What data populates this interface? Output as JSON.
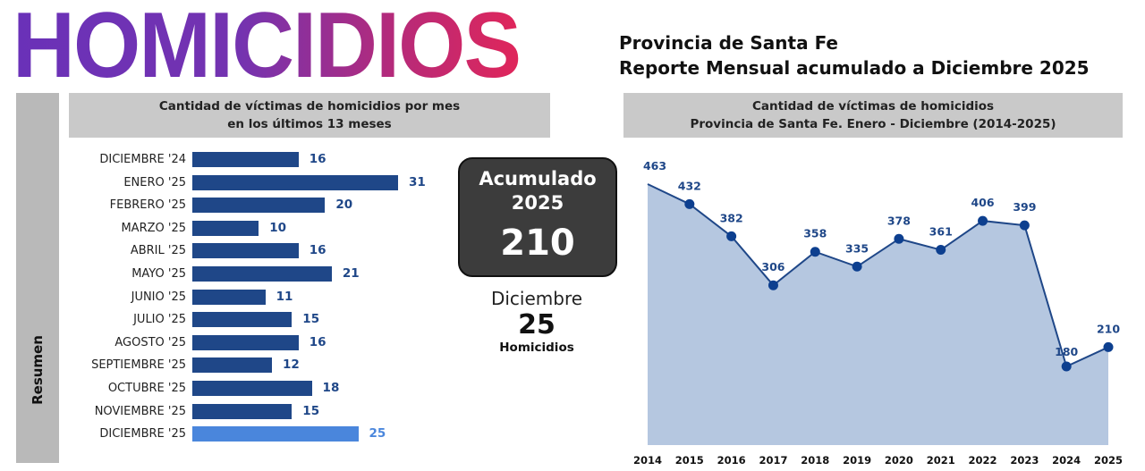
{
  "header": {
    "title": "HOMICIDIOS",
    "subtitle_1": "Provincia de Santa Fe",
    "subtitle_2": "Reporte Mensual acumulado a Diciembre 2025"
  },
  "sidebar": {
    "label": "Resumen"
  },
  "summary": {
    "acumulado_label": "Acumulado 2025",
    "acumulado_value": "210",
    "month_label": "Diciembre",
    "month_value": "25",
    "month_unit": "Homicidios"
  },
  "colors": {
    "bar": "#1f4788",
    "bar_highlight": "#4a86dc",
    "area": "#b5c7e0",
    "line": "#1f4788"
  },
  "chart_data": [
    {
      "type": "bar",
      "orientation": "horizontal",
      "title": "Cantidad de víctimas de homicidios por mes en los últimos 13 meses",
      "title_lines": [
        "Cantidad de víctimas de homicidios por mes",
        "en los últimos 13 meses"
      ],
      "categories": [
        "DICIEMBRE '24",
        "ENERO '25",
        "FEBRERO '25",
        "MARZO '25",
        "ABRIL '25",
        "MAYO '25",
        "JUNIO '25",
        "JULIO '25",
        "AGOSTO '25",
        "SEPTIEMBRE '25",
        "OCTUBRE '25",
        "NOVIEMBRE '25",
        "DICIEMBRE '25"
      ],
      "values": [
        16,
        31,
        20,
        10,
        16,
        21,
        11,
        15,
        16,
        12,
        18,
        15,
        25
      ],
      "highlight_index": 12
    },
    {
      "type": "area",
      "title": "Cantidad de víctimas de homicidios Provincia de Santa Fe. Enero - Diciembre (2014-2025)",
      "title_lines": [
        "Cantidad de víctimas de homicidios",
        "Provincia de Santa Fe. Enero - Diciembre (2014-2025)"
      ],
      "x": [
        "2014",
        "2015",
        "2016",
        "2017",
        "2018",
        "2019",
        "2020",
        "2021",
        "2022",
        "2023",
        "2024",
        "2025"
      ],
      "values": [
        463,
        432,
        382,
        306,
        358,
        335,
        378,
        361,
        406,
        399,
        180,
        210
      ],
      "ylim": [
        58,
        463
      ],
      "grid": false
    }
  ]
}
